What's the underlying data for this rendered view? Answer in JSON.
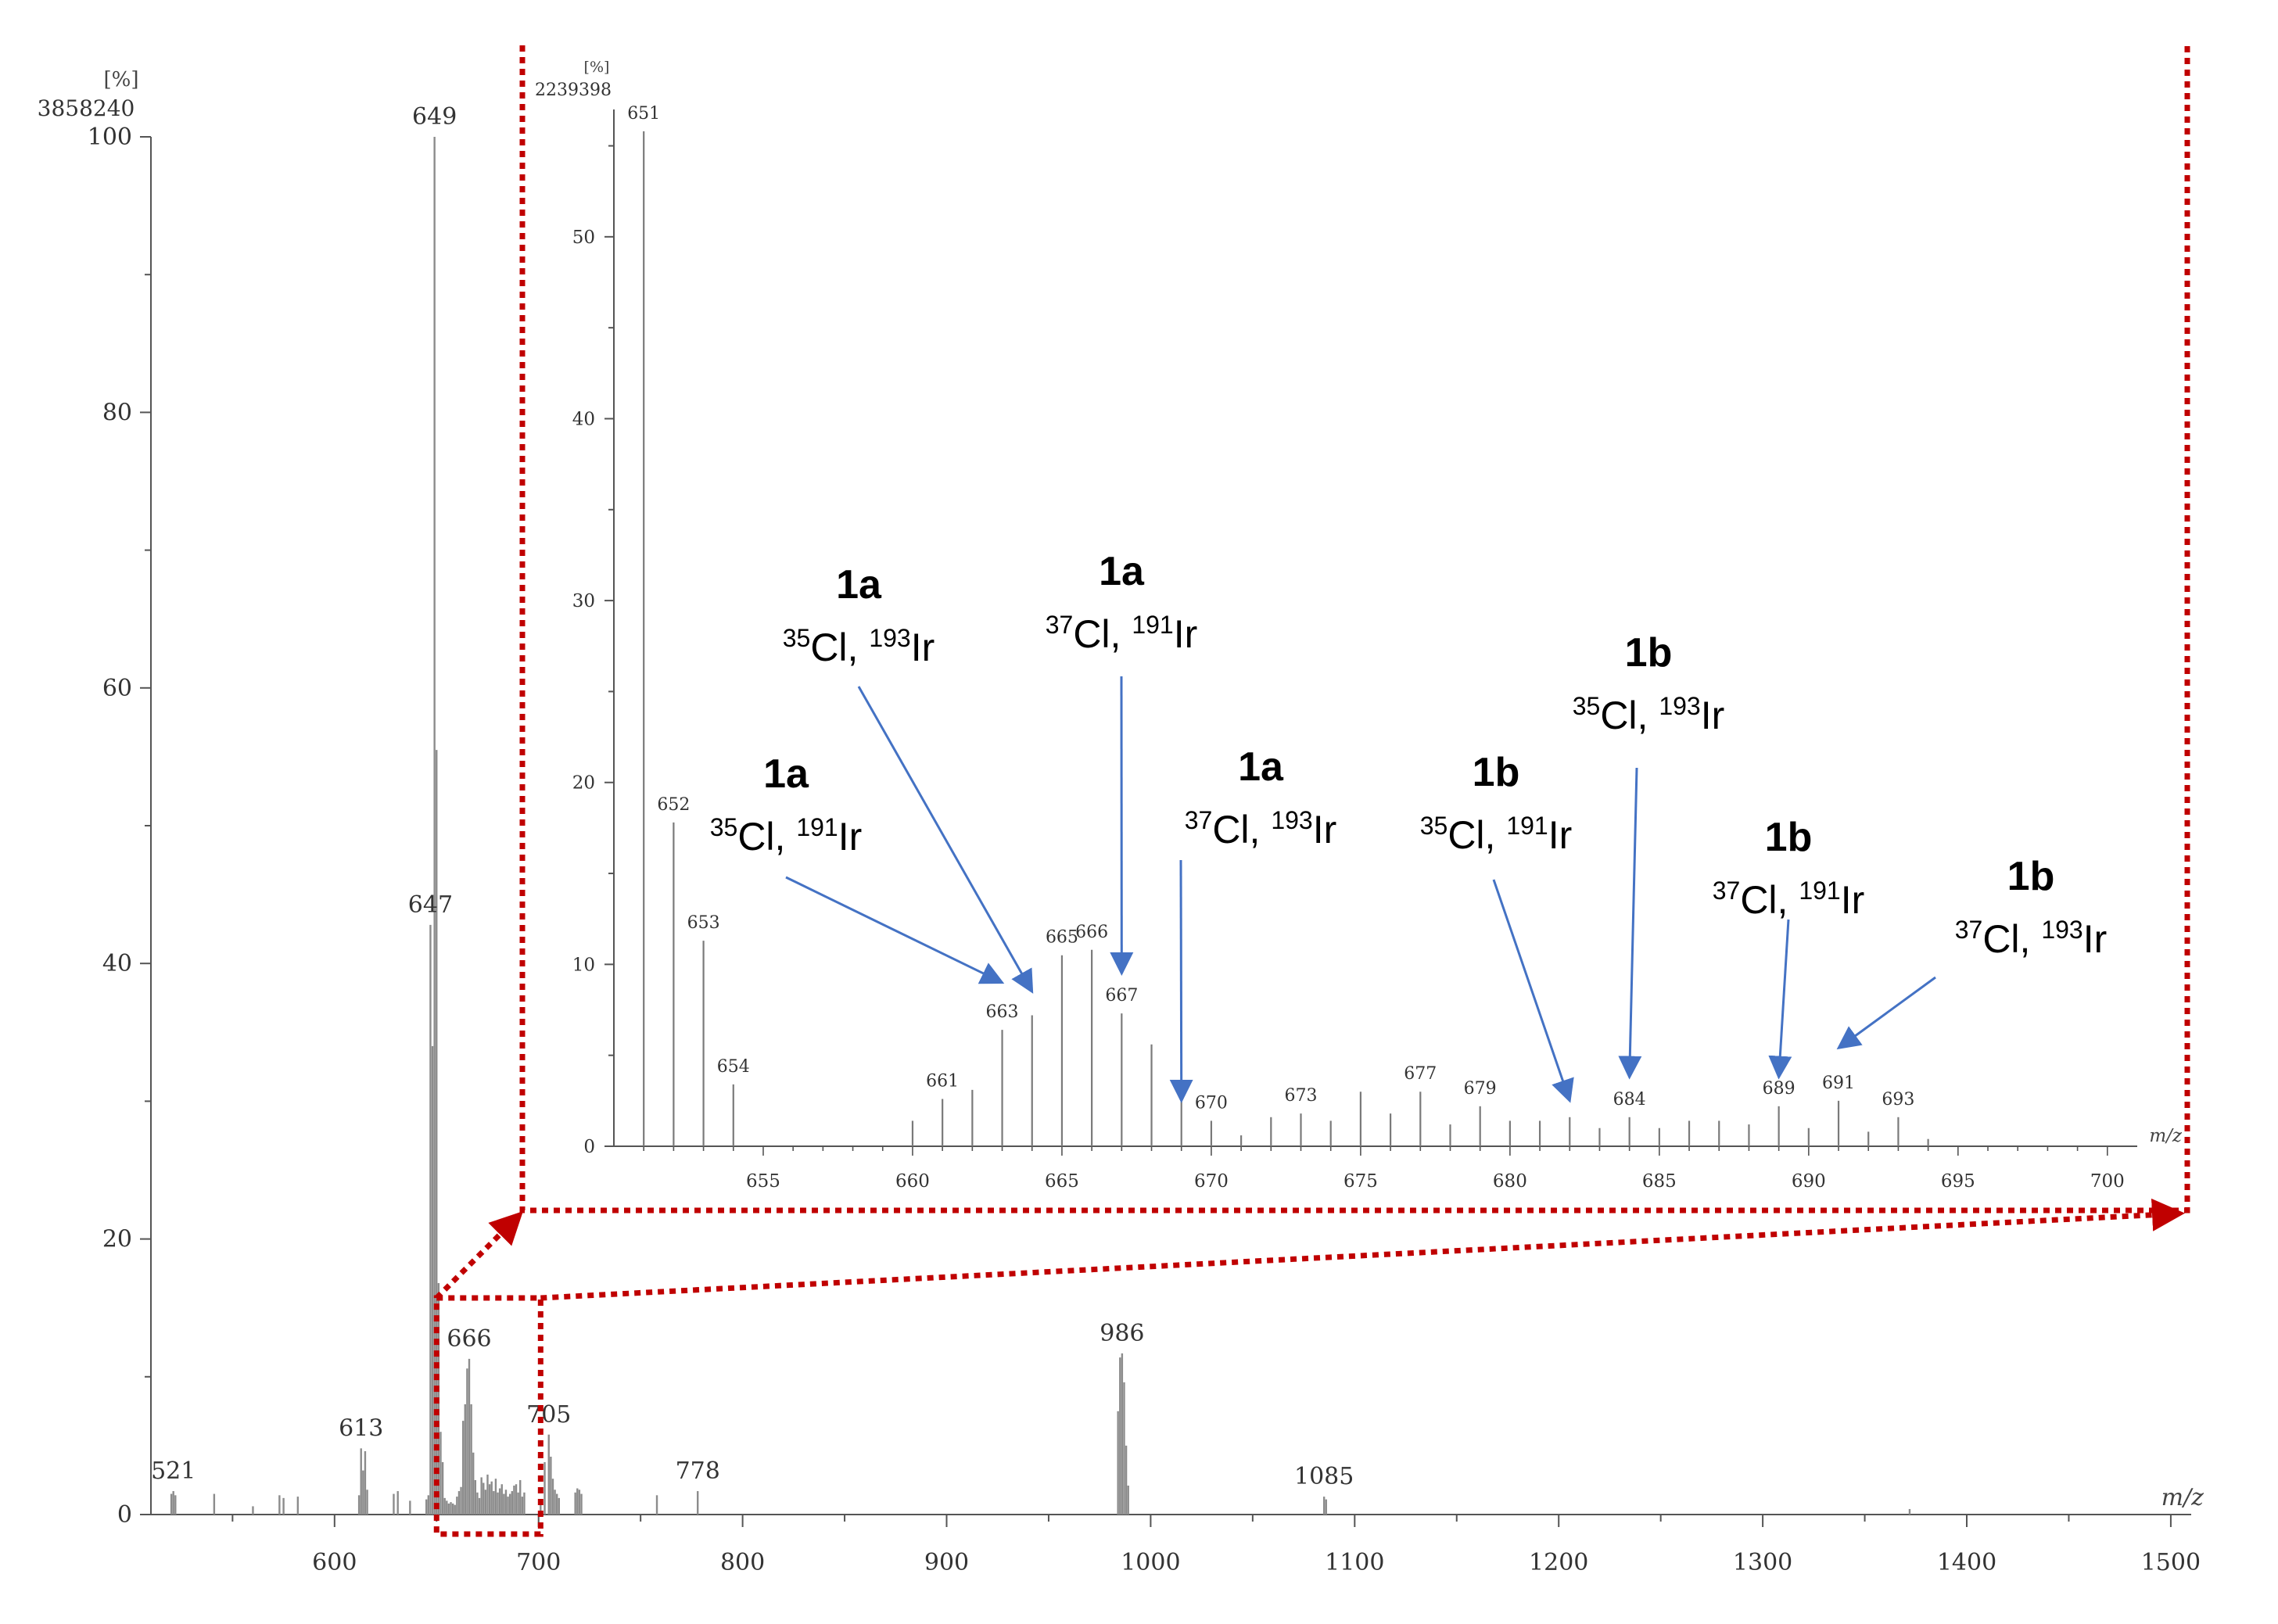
{
  "chart_data": [
    {
      "type": "bar",
      "name": "full-spectrum",
      "y_unit": "[%]",
      "y_base_intensity": "3858240",
      "xlabel": "m/z",
      "xlim": [
        510,
        1510
      ],
      "ylim": [
        0,
        100
      ],
      "x_ticks": [
        600,
        700,
        800,
        900,
        1000,
        1100,
        1200,
        1300,
        1400,
        1500
      ],
      "y_ticks": [
        0,
        20,
        40,
        60,
        80,
        100
      ],
      "peaks": [
        {
          "x": 520,
          "y": 1.5
        },
        {
          "x": 521,
          "y": 1.7
        },
        {
          "x": 522,
          "y": 1.4
        },
        {
          "x": 541,
          "y": 1.5
        },
        {
          "x": 560,
          "y": 0.6
        },
        {
          "x": 573,
          "y": 1.4
        },
        {
          "x": 575,
          "y": 1.2
        },
        {
          "x": 582,
          "y": 1.3
        },
        {
          "x": 612,
          "y": 1.4
        },
        {
          "x": 613,
          "y": 4.8
        },
        {
          "x": 614,
          "y": 3.2
        },
        {
          "x": 615,
          "y": 4.6
        },
        {
          "x": 616,
          "y": 1.8
        },
        {
          "x": 629,
          "y": 1.5
        },
        {
          "x": 631,
          "y": 1.7
        },
        {
          "x": 637,
          "y": 1.0
        },
        {
          "x": 645,
          "y": 1.1
        },
        {
          "x": 646,
          "y": 1.4
        },
        {
          "x": 647,
          "y": 42.8
        },
        {
          "x": 648,
          "y": 34.0
        },
        {
          "x": 649,
          "y": 100
        },
        {
          "x": 650,
          "y": 55.5
        },
        {
          "x": 651,
          "y": 16.8
        },
        {
          "x": 652,
          "y": 6.0
        },
        {
          "x": 653,
          "y": 3.8
        },
        {
          "x": 654,
          "y": 1.2
        },
        {
          "x": 655,
          "y": 1.0
        },
        {
          "x": 656,
          "y": 0.8
        },
        {
          "x": 657,
          "y": 0.9
        },
        {
          "x": 658,
          "y": 0.8
        },
        {
          "x": 659,
          "y": 0.7
        },
        {
          "x": 660,
          "y": 1.3
        },
        {
          "x": 661,
          "y": 1.7
        },
        {
          "x": 662,
          "y": 2.0
        },
        {
          "x": 663,
          "y": 6.8
        },
        {
          "x": 664,
          "y": 8.0
        },
        {
          "x": 665,
          "y": 10.6
        },
        {
          "x": 666,
          "y": 11.3
        },
        {
          "x": 667,
          "y": 8.0
        },
        {
          "x": 668,
          "y": 4.5
        },
        {
          "x": 669,
          "y": 2.5
        },
        {
          "x": 670,
          "y": 1.6
        },
        {
          "x": 671,
          "y": 1.2
        },
        {
          "x": 672,
          "y": 2.7
        },
        {
          "x": 673,
          "y": 2.3
        },
        {
          "x": 674,
          "y": 1.8
        },
        {
          "x": 675,
          "y": 2.9
        },
        {
          "x": 676,
          "y": 2.2
        },
        {
          "x": 677,
          "y": 2.4
        },
        {
          "x": 678,
          "y": 1.7
        },
        {
          "x": 679,
          "y": 2.6
        },
        {
          "x": 680,
          "y": 1.6
        },
        {
          "x": 681,
          "y": 1.9
        },
        {
          "x": 682,
          "y": 2.2
        },
        {
          "x": 683,
          "y": 1.5
        },
        {
          "x": 684,
          "y": 1.8
        },
        {
          "x": 685,
          "y": 1.3
        },
        {
          "x": 686,
          "y": 1.5
        },
        {
          "x": 687,
          "y": 1.7
        },
        {
          "x": 688,
          "y": 2.1
        },
        {
          "x": 689,
          "y": 2.2
        },
        {
          "x": 690,
          "y": 1.6
        },
        {
          "x": 691,
          "y": 2.5
        },
        {
          "x": 692,
          "y": 1.3
        },
        {
          "x": 693,
          "y": 1.6
        },
        {
          "x": 701,
          "y": 0.8
        },
        {
          "x": 703,
          "y": 3.8
        },
        {
          "x": 705,
          "y": 5.8
        },
        {
          "x": 706,
          "y": 4.2
        },
        {
          "x": 707,
          "y": 2.6
        },
        {
          "x": 708,
          "y": 1.8
        },
        {
          "x": 709,
          "y": 1.5
        },
        {
          "x": 710,
          "y": 1.2
        },
        {
          "x": 718,
          "y": 1.6
        },
        {
          "x": 719,
          "y": 1.9
        },
        {
          "x": 720,
          "y": 1.8
        },
        {
          "x": 721,
          "y": 1.5
        },
        {
          "x": 758,
          "y": 1.4
        },
        {
          "x": 778,
          "y": 1.7
        },
        {
          "x": 984,
          "y": 7.5
        },
        {
          "x": 985,
          "y": 11.4
        },
        {
          "x": 986,
          "y": 11.7
        },
        {
          "x": 987,
          "y": 9.6
        },
        {
          "x": 988,
          "y": 5.0
        },
        {
          "x": 989,
          "y": 2.1
        },
        {
          "x": 1085,
          "y": 1.3
        },
        {
          "x": 1086,
          "y": 1.1
        },
        {
          "x": 1372,
          "y": 0.4
        }
      ],
      "peak_labels": [
        {
          "x": 521,
          "y": 1.7,
          "text": "521"
        },
        {
          "x": 613,
          "y": 4.8,
          "text": "613"
        },
        {
          "x": 647,
          "y": 42.8,
          "text": "647"
        },
        {
          "x": 649,
          "y": 100,
          "text": "649"
        },
        {
          "x": 666,
          "y": 11.3,
          "text": "666"
        },
        {
          "x": 705,
          "y": 5.8,
          "text": "705"
        },
        {
          "x": 778,
          "y": 1.7,
          "text": "778"
        },
        {
          "x": 986,
          "y": 11.7,
          "text": "986"
        },
        {
          "x": 1085,
          "y": 1.3,
          "text": "1085"
        }
      ]
    },
    {
      "type": "bar",
      "name": "zoom-inset",
      "y_unit": "[%]",
      "y_base_intensity": "2239398",
      "xlabel": "m/z",
      "xlim": [
        650,
        701
      ],
      "ylim": [
        0,
        57
      ],
      "x_ticks": [
        655,
        660,
        665,
        670,
        675,
        680,
        685,
        690,
        695,
        700
      ],
      "y_ticks": [
        0,
        10,
        20,
        30,
        40,
        50
      ],
      "peaks": [
        {
          "x": 651,
          "y": 55.8
        },
        {
          "x": 652,
          "y": 17.8
        },
        {
          "x": 653,
          "y": 11.3
        },
        {
          "x": 654,
          "y": 3.4
        },
        {
          "x": 660,
          "y": 1.4
        },
        {
          "x": 661,
          "y": 2.6
        },
        {
          "x": 662,
          "y": 3.1
        },
        {
          "x": 663,
          "y": 6.4
        },
        {
          "x": 664,
          "y": 7.2
        },
        {
          "x": 665,
          "y": 10.5
        },
        {
          "x": 666,
          "y": 10.8
        },
        {
          "x": 667,
          "y": 7.3
        },
        {
          "x": 668,
          "y": 5.6
        },
        {
          "x": 669,
          "y": 3.0
        },
        {
          "x": 670,
          "y": 1.4
        },
        {
          "x": 671,
          "y": 0.6
        },
        {
          "x": 672,
          "y": 1.6
        },
        {
          "x": 673,
          "y": 1.8
        },
        {
          "x": 674,
          "y": 1.4
        },
        {
          "x": 675,
          "y": 3.0
        },
        {
          "x": 676,
          "y": 1.8
        },
        {
          "x": 677,
          "y": 3.0
        },
        {
          "x": 678,
          "y": 1.2
        },
        {
          "x": 679,
          "y": 2.2
        },
        {
          "x": 680,
          "y": 1.4
        },
        {
          "x": 681,
          "y": 1.4
        },
        {
          "x": 682,
          "y": 1.6
        },
        {
          "x": 683,
          "y": 1.0
        },
        {
          "x": 684,
          "y": 1.6
        },
        {
          "x": 685,
          "y": 1.0
        },
        {
          "x": 686,
          "y": 1.4
        },
        {
          "x": 687,
          "y": 1.4
        },
        {
          "x": 688,
          "y": 1.2
        },
        {
          "x": 689,
          "y": 2.2
        },
        {
          "x": 690,
          "y": 1.0
        },
        {
          "x": 691,
          "y": 2.5
        },
        {
          "x": 692,
          "y": 0.8
        },
        {
          "x": 693,
          "y": 1.6
        },
        {
          "x": 694,
          "y": 0.4
        }
      ],
      "peak_labels": [
        {
          "x": 651,
          "y": 55.8,
          "text": "651"
        },
        {
          "x": 652,
          "y": 17.8,
          "text": "652"
        },
        {
          "x": 653,
          "y": 11.3,
          "text": "653"
        },
        {
          "x": 654,
          "y": 3.4,
          "text": "654"
        },
        {
          "x": 661,
          "y": 2.6,
          "text": "661"
        },
        {
          "x": 663,
          "y": 6.4,
          "text": "663"
        },
        {
          "x": 665,
          "y": 10.5,
          "text": "665"
        },
        {
          "x": 666,
          "y": 10.8,
          "text": "666"
        },
        {
          "x": 667,
          "y": 7.3,
          "text": "667"
        },
        {
          "x": 670,
          "y": 1.4,
          "text": "670"
        },
        {
          "x": 673,
          "y": 1.8,
          "text": "673"
        },
        {
          "x": 677,
          "y": 3.0,
          "text": "677"
        },
        {
          "x": 679,
          "y": 2.2,
          "text": "679"
        },
        {
          "x": 684,
          "y": 1.6,
          "text": "684"
        },
        {
          "x": 689,
          "y": 2.2,
          "text": "689"
        },
        {
          "x": 691,
          "y": 2.5,
          "text": "691"
        },
        {
          "x": 693,
          "y": 1.6,
          "text": "693"
        }
      ],
      "annotations": [
        {
          "label": "1a",
          "cl": "35",
          "ir": "193",
          "target_x": 664,
          "target_y": 8.5
        },
        {
          "label": "1a",
          "cl": "37",
          "ir": "191",
          "target_x": 667,
          "target_y": 9.5
        },
        {
          "label": "1a",
          "cl": "35",
          "ir": "191",
          "target_x": 663,
          "target_y": 9.0
        },
        {
          "label": "1a",
          "cl": "37",
          "ir": "193",
          "target_x": 669,
          "target_y": 2.5
        },
        {
          "label": "1b",
          "cl": "35",
          "ir": "191",
          "target_x": 682,
          "target_y": 2.5
        },
        {
          "label": "1b",
          "cl": "35",
          "ir": "193",
          "target_x": 684,
          "target_y": 3.8
        },
        {
          "label": "1b",
          "cl": "37",
          "ir": "191",
          "target_x": 689,
          "target_y": 3.8
        },
        {
          "label": "1b",
          "cl": "37",
          "ir": "193",
          "target_x": 691,
          "target_y": 5.4
        }
      ]
    }
  ],
  "colors": {
    "peak": "#8c8c8c",
    "axis": "#555555",
    "zoom_frame": "#c00000",
    "arrow": "#4472c4"
  }
}
